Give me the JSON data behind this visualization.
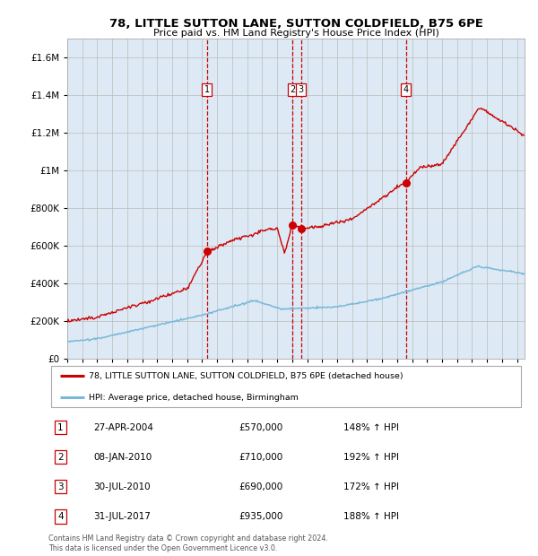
{
  "title1": "78, LITTLE SUTTON LANE, SUTTON COLDFIELD, B75 6PE",
  "title2": "Price paid vs. HM Land Registry's House Price Index (HPI)",
  "legend_line1": "78, LITTLE SUTTON LANE, SUTTON COLDFIELD, B75 6PE (detached house)",
  "legend_line2": "HPI: Average price, detached house, Birmingham",
  "footnote": "Contains HM Land Registry data © Crown copyright and database right 2024.\nThis data is licensed under the Open Government Licence v3.0.",
  "transactions": [
    {
      "num": 1,
      "price": 570000,
      "x_year": 2004.32
    },
    {
      "num": 2,
      "price": 710000,
      "x_year": 2010.02
    },
    {
      "num": 3,
      "price": 690000,
      "x_year": 2010.58
    },
    {
      "num": 4,
      "price": 935000,
      "x_year": 2017.58
    }
  ],
  "table_rows": [
    {
      "num": 1,
      "date_str": "27-APR-2004",
      "price_str": "£570,000",
      "pct_str": "148% ↑ HPI"
    },
    {
      "num": 2,
      "date_str": "08-JAN-2010",
      "price_str": "£710,000",
      "pct_str": "192% ↑ HPI"
    },
    {
      "num": 3,
      "date_str": "30-JUL-2010",
      "price_str": "£690,000",
      "pct_str": "172% ↑ HPI"
    },
    {
      "num": 4,
      "date_str": "31-JUL-2017",
      "price_str": "£935,000",
      "pct_str": "188% ↑ HPI"
    }
  ],
  "hpi_color": "#7ab8d9",
  "price_color": "#cc0000",
  "dashed_color": "#cc0000",
  "background_color": "#ddeaf5",
  "grid_color": "#bbbbbb",
  "ylim_max": 1700000,
  "xlim_start": 1995.0,
  "xlim_end": 2025.5,
  "yticks": [
    0,
    200000,
    400000,
    600000,
    800000,
    1000000,
    1200000,
    1400000,
    1600000
  ]
}
